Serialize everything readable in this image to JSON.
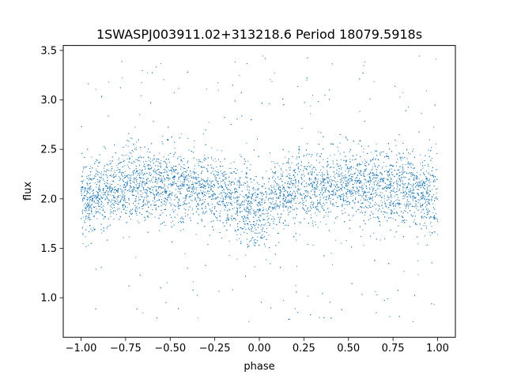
{
  "chart_data": {
    "type": "scatter",
    "title": "1SWASPJ003911.02+313218.6 Period 18079.5918s",
    "xlabel": "phase",
    "ylabel": "flux",
    "xlim": [
      -1.1,
      1.1
    ],
    "ylim": [
      0.6,
      3.55
    ],
    "xticks": [
      -1.0,
      -0.75,
      -0.5,
      -0.25,
      0.0,
      0.25,
      0.5,
      0.75,
      1.0
    ],
    "xtick_labels": [
      "−1.00",
      "−0.75",
      "−0.50",
      "−0.25",
      "0.00",
      "0.25",
      "0.50",
      "0.75",
      "1.00"
    ],
    "yticks": [
      1.0,
      1.5,
      2.0,
      2.5,
      3.0,
      3.5
    ],
    "ytick_labels": [
      "1.0",
      "1.5",
      "2.0",
      "2.5",
      "3.0",
      "3.5"
    ],
    "grid": false,
    "point_color": "#1f77b4",
    "series": [
      {
        "x_range": [
          -1.0,
          1.0
        ],
        "profile_phase": [
          -1.0,
          -0.9,
          -0.8,
          -0.7,
          -0.6,
          -0.5,
          -0.4,
          -0.3,
          -0.2,
          -0.1,
          -0.05,
          0.0,
          0.05,
          0.1,
          0.2,
          0.3,
          0.4,
          0.5,
          0.6,
          0.7,
          0.8,
          0.9,
          1.0
        ],
        "profile_flux": [
          1.95,
          2.05,
          2.12,
          2.15,
          2.14,
          2.13,
          2.12,
          2.1,
          2.06,
          1.98,
          1.9,
          1.85,
          1.92,
          2.02,
          2.1,
          2.14,
          2.15,
          2.14,
          2.13,
          2.12,
          2.1,
          2.05,
          1.95
        ],
        "scatter_sigma": 0.18,
        "outlier_range": [
          0.75,
          3.45
        ]
      }
    ]
  }
}
